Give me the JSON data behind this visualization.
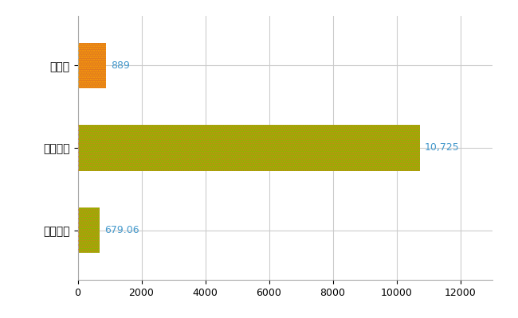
{
  "categories": [
    "全国平均",
    "全国最大",
    "愛知県"
  ],
  "values": [
    679.06,
    10725,
    889
  ],
  "bar_colors": [
    "#8db600",
    "#8db600",
    "#e07820"
  ],
  "hatch_colors": [
    "#e07820",
    "#e07820",
    "#ffaa00"
  ],
  "label_color": "#4499cc",
  "label_texts": [
    "679.06",
    "10,725",
    "889"
  ],
  "xlim": [
    0,
    13000
  ],
  "xticks": [
    0,
    2000,
    4000,
    6000,
    8000,
    10000,
    12000
  ],
  "grid_color": "#cccccc",
  "background_color": "#ffffff",
  "bar_height": 0.55,
  "figsize": [
    6.5,
    4.0
  ],
  "dpi": 100
}
